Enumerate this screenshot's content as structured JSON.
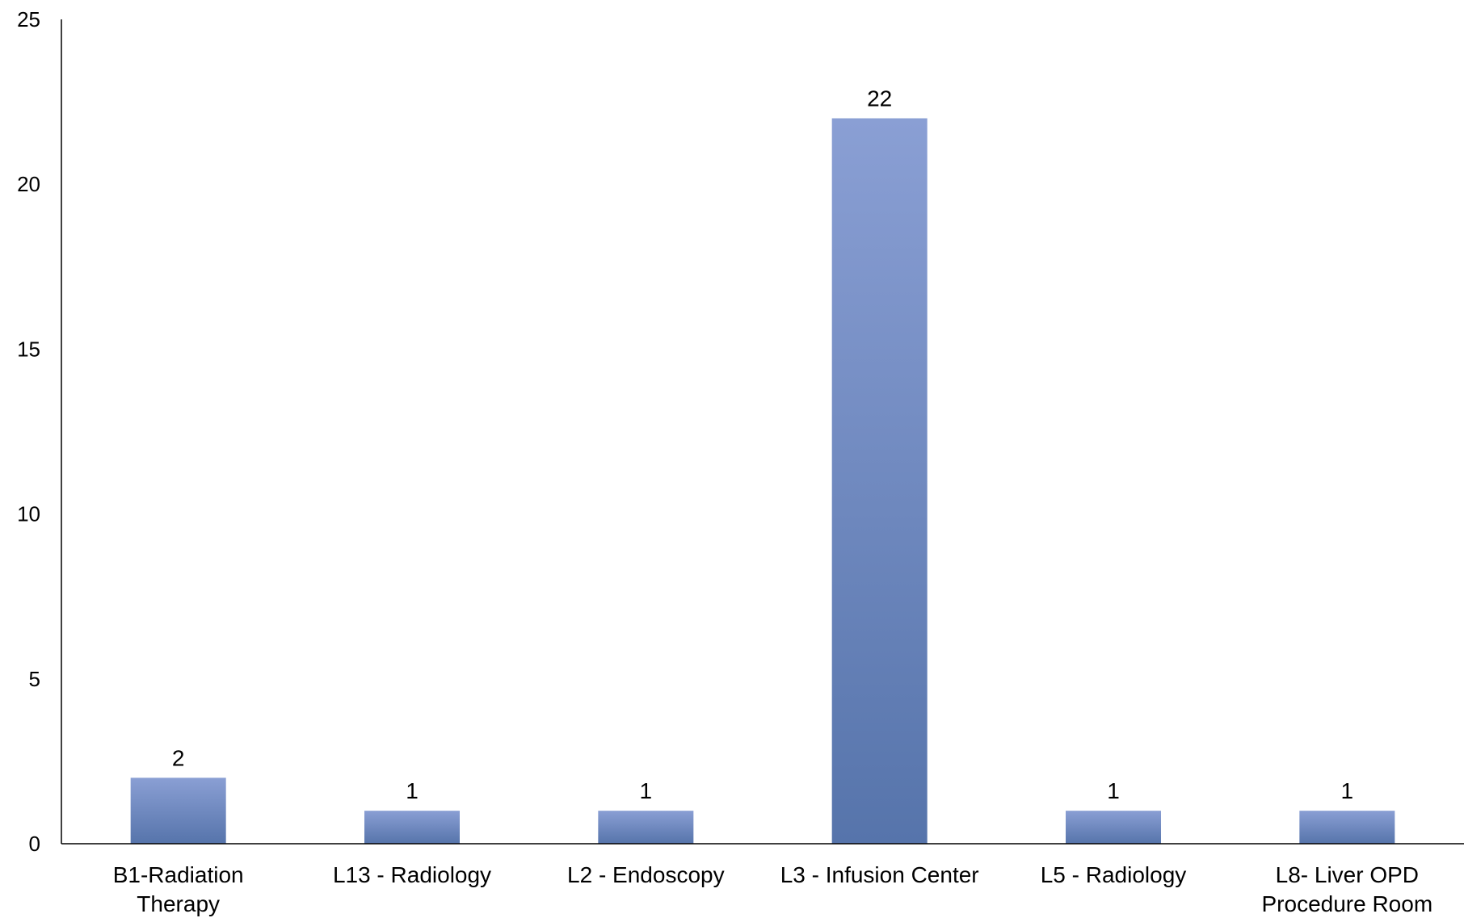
{
  "chart_data": {
    "type": "bar",
    "categories": [
      [
        "B1-Radiation",
        "Therapy"
      ],
      [
        "L13 - Radiology"
      ],
      [
        "L2 - Endoscopy"
      ],
      [
        "L3 - Infusion Center"
      ],
      [
        "L5 - Radiology"
      ],
      [
        "L8- Liver OPD",
        "Procedure Room"
      ]
    ],
    "values": [
      2,
      1,
      1,
      22,
      1,
      1
    ],
    "ylim": [
      0,
      25
    ],
    "yticks": [
      0,
      5,
      10,
      15,
      20,
      25
    ],
    "data_labels": true,
    "grid": false,
    "legend": "none",
    "title": "",
    "xlabel": "",
    "ylabel": "",
    "colors": {
      "bar_top": "#8a9fd4",
      "bar_bottom": "#5674ab",
      "axis": "#000000"
    }
  }
}
